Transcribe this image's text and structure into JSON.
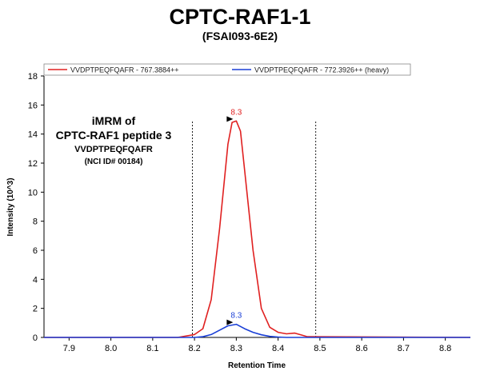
{
  "chart_data": {
    "type": "line",
    "title": "CPTC-RAF1-1",
    "subtitle": "(FSAI093-6E2)",
    "xlabel": "Retention Time",
    "ylabel": "Intensity (10^3)",
    "xlim": [
      7.84,
      8.86
    ],
    "ylim": [
      0,
      18
    ],
    "x_ticks": [
      "7.9",
      "8.0",
      "8.1",
      "8.2",
      "8.3",
      "8.4",
      "8.5",
      "8.6",
      "8.7",
      "8.8"
    ],
    "x_tick_values": [
      7.9,
      8.0,
      8.1,
      8.2,
      8.3,
      8.4,
      8.5,
      8.6,
      8.7,
      8.8
    ],
    "y_ticks": [
      "0",
      "2",
      "4",
      "6",
      "8",
      "10",
      "12",
      "14",
      "16",
      "18"
    ],
    "y_tick_values": [
      0,
      2,
      4,
      6,
      8,
      10,
      12,
      14,
      16,
      18
    ],
    "grid": false,
    "legend_position": "top",
    "integration_boundaries": [
      8.195,
      8.49
    ],
    "annotation": {
      "line1": "iMRM of",
      "line2": "CPTC-RAF1 peptide 3",
      "line3": "VVDPTPEQFQAFR",
      "line4": "(NCI ID# 00184)"
    },
    "series": [
      {
        "name": "VVDPTPEQFQAFR - 767.3884++",
        "color": "#e02020",
        "peak_label": "8.3",
        "x": [
          7.84,
          8.16,
          8.2,
          8.22,
          8.24,
          8.26,
          8.28,
          8.29,
          8.3,
          8.31,
          8.32,
          8.34,
          8.36,
          8.38,
          8.4,
          8.42,
          8.44,
          8.47,
          8.86
        ],
        "y": [
          0,
          0,
          0.2,
          0.6,
          2.6,
          7.5,
          13.3,
          14.8,
          14.9,
          14.2,
          11.5,
          6.0,
          2.0,
          0.7,
          0.35,
          0.25,
          0.3,
          0.05,
          0
        ]
      },
      {
        "name": "VVDPTPEQFQAFR - 772.3926++ (heavy)",
        "color": "#1a3fd6",
        "peak_label": "8.3",
        "x": [
          7.84,
          8.2,
          8.22,
          8.24,
          8.26,
          8.28,
          8.3,
          8.32,
          8.34,
          8.36,
          8.38,
          8.4,
          8.42,
          8.86
        ],
        "y": [
          0,
          0,
          0.05,
          0.2,
          0.5,
          0.8,
          0.9,
          0.6,
          0.35,
          0.18,
          0.07,
          0.03,
          0,
          0
        ]
      }
    ]
  }
}
